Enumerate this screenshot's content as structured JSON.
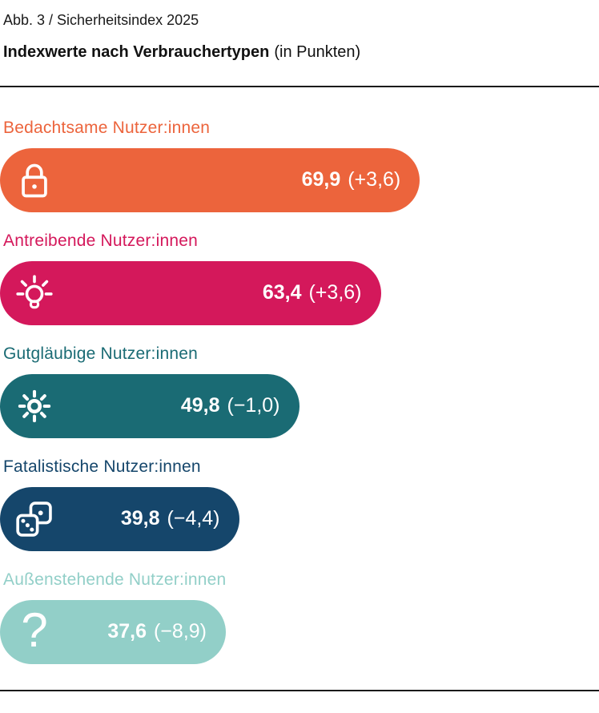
{
  "figure": {
    "kicker": "Abb. 3 / Sicherheitsindex 2025",
    "title": "Indexwerte nach Verbrauchertypen",
    "title_suffix": "(in Punkten)"
  },
  "chart_data": {
    "type": "bar",
    "orientation": "horizontal",
    "title": "Indexwerte nach Verbrauchertypen (in Punkten)",
    "subtitle": "Abb. 3 / Sicherheitsindex 2025",
    "xlim": [
      0,
      100
    ],
    "grid": false,
    "legend": false,
    "categories": [
      "Bedachtsame Nutzer:innen",
      "Antreibende Nutzer:innen",
      "Gutgläubige Nutzer:innen",
      "Fatalistische Nutzer:innen",
      "Außenstehende Nutzer:innen"
    ],
    "values": [
      69.9,
      63.4,
      49.8,
      39.8,
      37.6
    ],
    "deltas": [
      3.6,
      3.6,
      -1.0,
      -4.4,
      -8.9
    ],
    "value_labels": [
      "69,9",
      "63,4",
      "49,8",
      "39,8",
      "37,6"
    ],
    "delta_labels": [
      "(+3,6)",
      "(+3,6)",
      "(−1,0)",
      "(−4,4)",
      "(−8,9)"
    ],
    "bar_colors": [
      "#EC643C",
      "#D4185B",
      "#1A6B74",
      "#15466B",
      "#92CFC8"
    ],
    "label_colors": [
      "#EC643C",
      "#D4185B",
      "#1A6B74",
      "#15466B",
      "#92CFC8"
    ],
    "icons": [
      "lock-icon",
      "lightbulb-icon",
      "sun-icon",
      "dice-icon",
      "question-mark-icon"
    ],
    "value_text_color": "#ffffff"
  }
}
